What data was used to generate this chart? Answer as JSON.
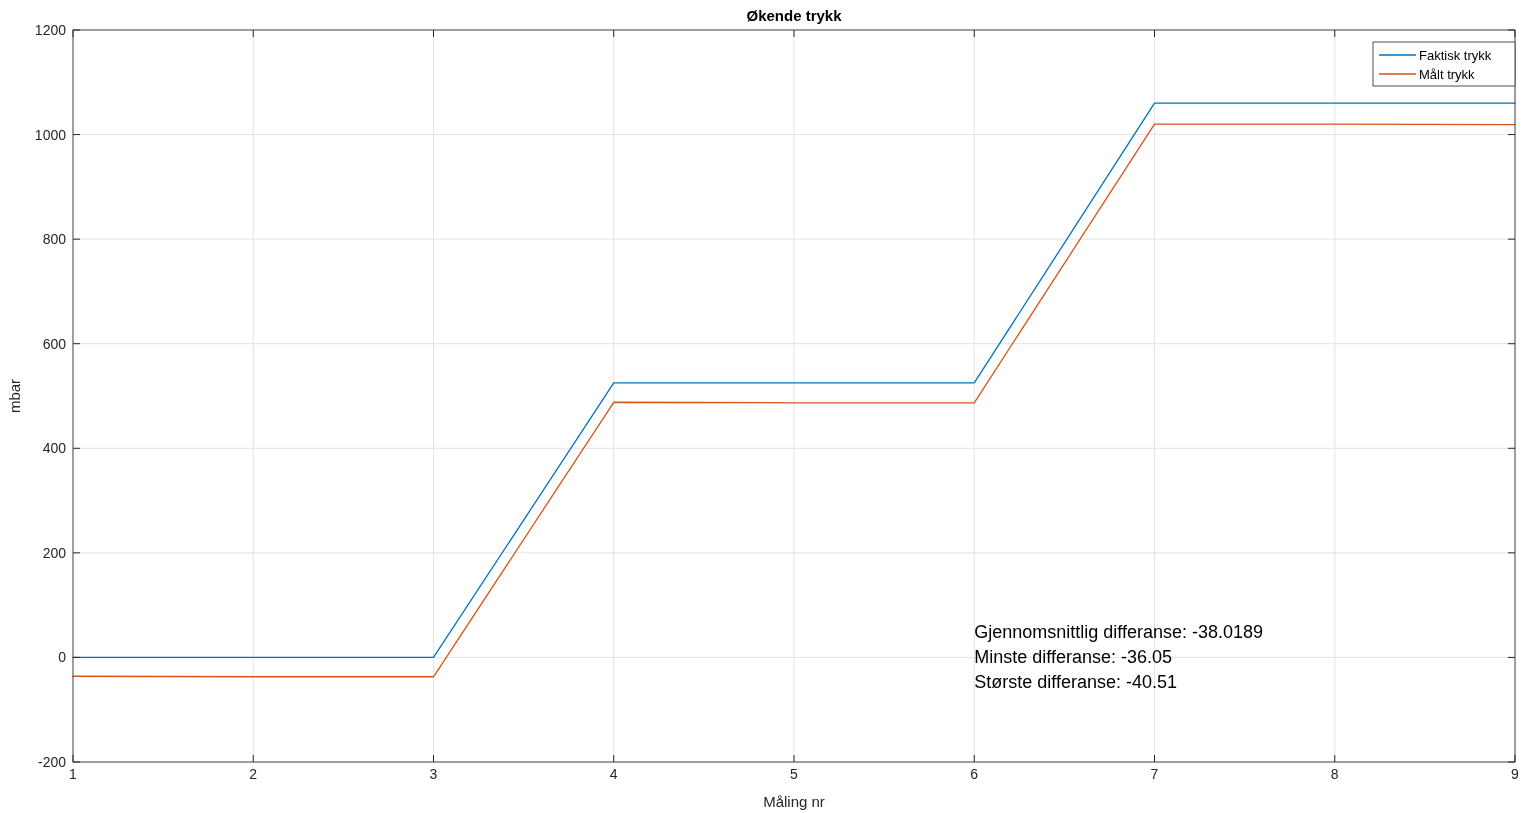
{
  "chart_data": {
    "type": "line",
    "title": "Økende trykk",
    "xlabel": "Måling nr",
    "ylabel": "mbar",
    "x": [
      1,
      2,
      3,
      4,
      5,
      6,
      7,
      8,
      9
    ],
    "series": [
      {
        "name": "Faktisk trykk",
        "color": "#0072bd",
        "values": [
          0,
          0,
          0,
          525,
          525,
          525,
          1060,
          1060,
          1060
        ]
      },
      {
        "name": "Målt trykk",
        "color": "#d95319",
        "values": [
          -36,
          -37,
          -37,
          488,
          487,
          487,
          1020,
          1020,
          1019
        ]
      }
    ],
    "xlim": [
      1,
      9
    ],
    "xticks": [
      1,
      2,
      3,
      4,
      5,
      6,
      7,
      8,
      9
    ],
    "ylim": [
      -200,
      1200
    ],
    "yticks": [
      -200,
      0,
      200,
      400,
      600,
      800,
      1000,
      1200
    ],
    "grid": true,
    "legend": "top right",
    "line_style": "solid",
    "marker": "none",
    "annotations": [
      "Gjennomsnittlig differanse: -38.0189",
      "Minste differanse: -36.05",
      "Største differanse: -40.51"
    ]
  }
}
